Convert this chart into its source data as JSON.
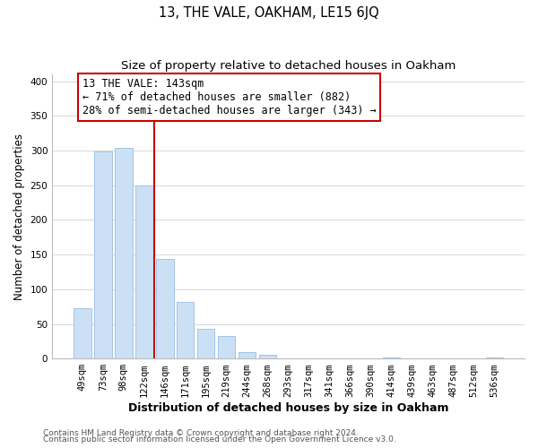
{
  "title": "13, THE VALE, OAKHAM, LE15 6JQ",
  "subtitle": "Size of property relative to detached houses in Oakham",
  "xlabel": "Distribution of detached houses by size in Oakham",
  "ylabel": "Number of detached properties",
  "bar_labels": [
    "49sqm",
    "73sqm",
    "98sqm",
    "122sqm",
    "146sqm",
    "171sqm",
    "195sqm",
    "219sqm",
    "244sqm",
    "268sqm",
    "293sqm",
    "317sqm",
    "341sqm",
    "366sqm",
    "390sqm",
    "414sqm",
    "439sqm",
    "463sqm",
    "487sqm",
    "512sqm",
    "536sqm"
  ],
  "bar_values": [
    73,
    299,
    304,
    250,
    144,
    82,
    43,
    32,
    9,
    6,
    0,
    0,
    0,
    0,
    0,
    2,
    0,
    0,
    0,
    0,
    2
  ],
  "bar_color": "#cce0f5",
  "bar_edge_color": "#a0c4e8",
  "vline_x": 3.5,
  "vline_color": "#cc0000",
  "annotation_text": "13 THE VALE: 143sqm\n← 71% of detached houses are smaller (882)\n28% of semi-detached houses are larger (343) →",
  "annotation_box_color": "white",
  "annotation_box_edge_color": "#cc0000",
  "ylim": [
    0,
    410
  ],
  "yticks": [
    0,
    50,
    100,
    150,
    200,
    250,
    300,
    350,
    400
  ],
  "footer_line1": "Contains HM Land Registry data © Crown copyright and database right 2024.",
  "footer_line2": "Contains public sector information licensed under the Open Government Licence v3.0.",
  "background_color": "#ffffff",
  "grid_color": "#d8d8d8",
  "title_fontsize": 10.5,
  "subtitle_fontsize": 9.5,
  "xlabel_fontsize": 9,
  "ylabel_fontsize": 8.5,
  "tick_fontsize": 7.5,
  "footer_fontsize": 6.5,
  "annotation_fontsize": 8.5
}
